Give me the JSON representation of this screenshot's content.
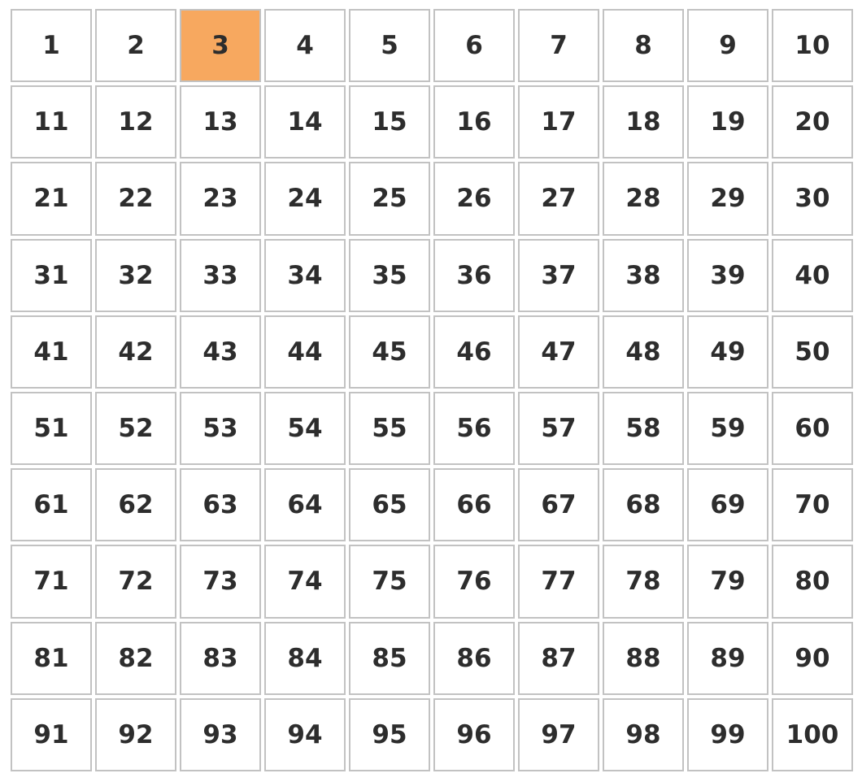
{
  "grid": {
    "rows": 10,
    "cols": 10,
    "cells": [
      1,
      2,
      3,
      4,
      5,
      6,
      7,
      8,
      9,
      10,
      11,
      12,
      13,
      14,
      15,
      16,
      17,
      18,
      19,
      20,
      21,
      22,
      23,
      24,
      25,
      26,
      27,
      28,
      29,
      30,
      31,
      32,
      33,
      34,
      35,
      36,
      37,
      38,
      39,
      40,
      41,
      42,
      43,
      44,
      45,
      46,
      47,
      48,
      49,
      50,
      51,
      52,
      53,
      54,
      55,
      56,
      57,
      58,
      59,
      60,
      61,
      62,
      63,
      64,
      65,
      66,
      67,
      68,
      69,
      70,
      71,
      72,
      73,
      74,
      75,
      76,
      77,
      78,
      79,
      80,
      81,
      82,
      83,
      84,
      85,
      86,
      87,
      88,
      89,
      90,
      91,
      92,
      93,
      94,
      95,
      96,
      97,
      98,
      99,
      100
    ],
    "highlighted_value": 3
  },
  "colors": {
    "highlight": "#f7a85f",
    "cell_background": "#ffffff",
    "cell_border": "#c2c2c2",
    "text": "#2d2d2d"
  }
}
